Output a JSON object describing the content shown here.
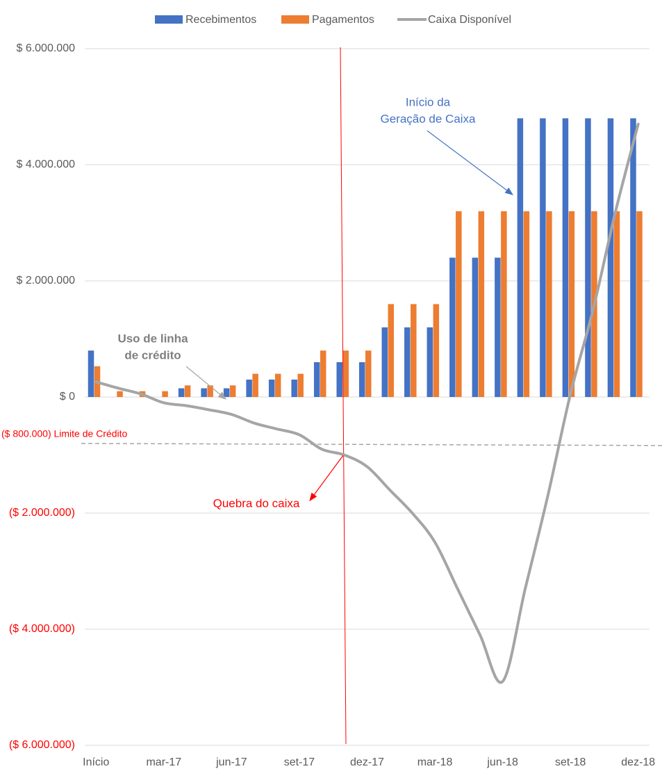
{
  "chart_data": {
    "type": "bar",
    "categories": [
      "Início",
      null,
      null,
      "mar-17",
      null,
      null,
      "jun-17",
      null,
      null,
      "set-17",
      null,
      null,
      "dez-17",
      null,
      null,
      "mar-18",
      null,
      null,
      "jun-18",
      null,
      null,
      "set-18",
      null,
      null,
      "dez-18"
    ],
    "series": [
      {
        "name": "Recebimentos",
        "color": "#4472c4",
        "type": "bar",
        "values": [
          800000,
          0,
          0,
          0,
          150000,
          150000,
          150000,
          300000,
          300000,
          300000,
          600000,
          600000,
          600000,
          1200000,
          1200000,
          1200000,
          2400000,
          2400000,
          2400000,
          4800000,
          4800000,
          4800000,
          4800000,
          4800000,
          4800000
        ]
      },
      {
        "name": "Pagamentos",
        "color": "#ed7d31",
        "type": "bar",
        "values": [
          530000,
          100000,
          100000,
          100000,
          200000,
          200000,
          200000,
          400000,
          400000,
          400000,
          800000,
          800000,
          800000,
          1600000,
          1600000,
          1600000,
          3200000,
          3200000,
          3200000,
          3200000,
          3200000,
          3200000,
          3200000,
          3200000,
          3200000
        ]
      },
      {
        "name": "Caixa Disponível",
        "color": "#a5a5a5",
        "type": "line",
        "values": [
          260000,
          150000,
          50000,
          -100000,
          -150000,
          -220000,
          -300000,
          -450000,
          -550000,
          -650000,
          -900000,
          -1000000,
          -1200000,
          -1600000,
          -2000000,
          -2500000,
          -3300000,
          -4100000,
          -4900000,
          -3300000,
          -1700000,
          50000,
          1500000,
          3200000,
          4700000
        ]
      }
    ],
    "ylim": [
      -6000000,
      6000000
    ],
    "yticks": [
      {
        "value": 6000000,
        "label": "$ 6.000.000"
      },
      {
        "value": 4000000,
        "label": "$ 4.000.000"
      },
      {
        "value": 2000000,
        "label": "$ 2.000.000"
      },
      {
        "value": 0,
        "label": "$ 0"
      },
      {
        "value": -2000000,
        "label": "($ 2.000.000)"
      },
      {
        "value": -4000000,
        "label": "($ 4.000.000)"
      },
      {
        "value": -6000000,
        "label": "($ 6.000.000)"
      }
    ],
    "negative_tick_color": "#ff0000",
    "grid": true,
    "legend": "top",
    "credit_limit": {
      "value": -800000,
      "label": "($ 800.000) Limite de Crédito",
      "color": "#ff0000"
    },
    "annotations": [
      {
        "lines": [
          "Início da",
          "Geração de Caixa"
        ],
        "color": "#4472c4"
      },
      {
        "lines": [
          "Uso de linha",
          "de crédito"
        ],
        "color": "#7f7f7f"
      },
      {
        "lines": [
          "Quebra do caixa"
        ],
        "color": "#ff0000"
      }
    ]
  }
}
